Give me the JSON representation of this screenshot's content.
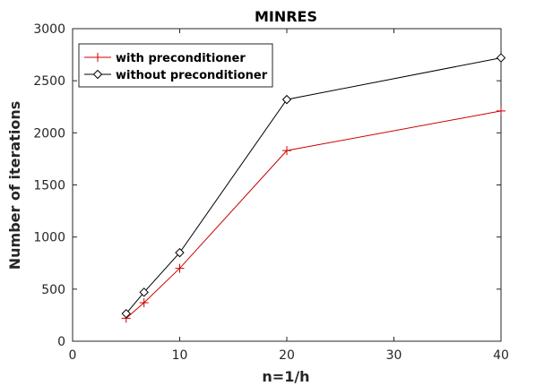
{
  "chart_data": {
    "type": "line",
    "title": "MINRES",
    "xlabel": "n=1/h",
    "ylabel": "Number of iterations",
    "xlim": [
      0,
      40
    ],
    "ylim": [
      0,
      3000
    ],
    "xticks": [
      0,
      10,
      20,
      30,
      40
    ],
    "yticks": [
      0,
      500,
      1000,
      1500,
      2000,
      2500,
      3000
    ],
    "grid": false,
    "legend_position": "top-left",
    "series": [
      {
        "name": "with preconditioner",
        "color": "#cc0000",
        "marker": "plus",
        "x": [
          5,
          6.67,
          10,
          20,
          40
        ],
        "y": [
          220,
          370,
          700,
          1830,
          2210
        ]
      },
      {
        "name": "without preconditioner",
        "color": "#000000",
        "marker": "diamond",
        "x": [
          5,
          6.67,
          10,
          20,
          40
        ],
        "y": [
          265,
          470,
          850,
          2320,
          2720
        ]
      }
    ]
  }
}
